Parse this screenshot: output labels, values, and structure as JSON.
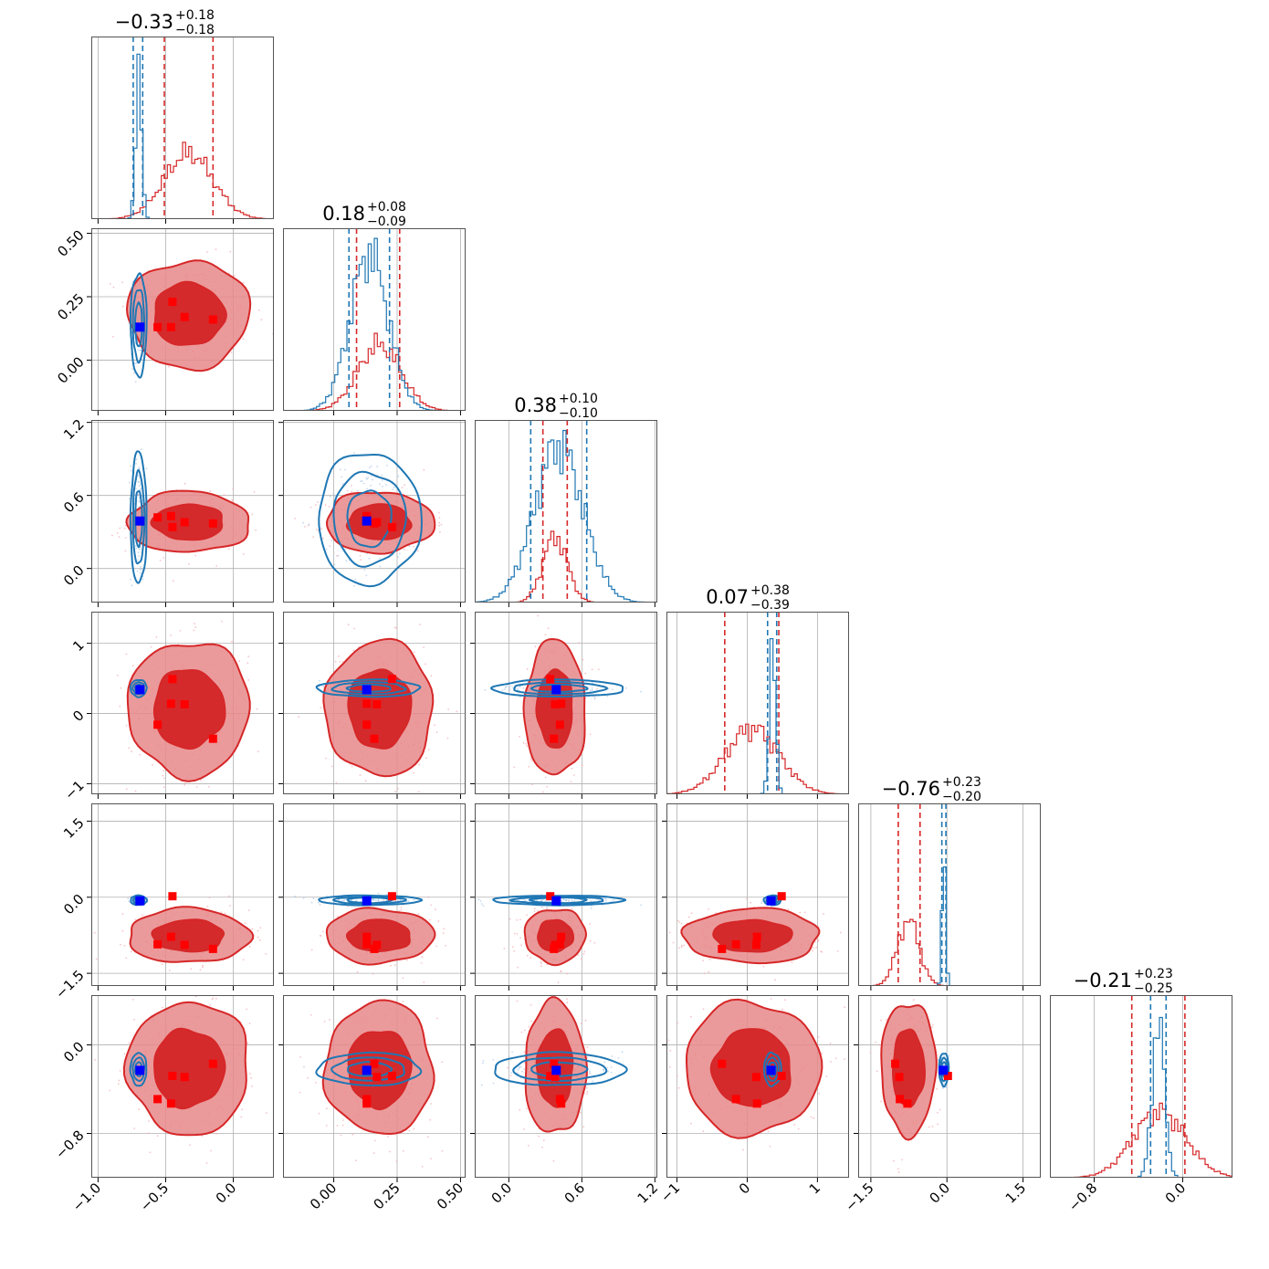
{
  "chart_data": {
    "type": "corner",
    "parameters": 6,
    "grid": true,
    "colors": {
      "red": "#d62728",
      "red_fill": "#e8888a",
      "red_dark": "#d42a2c",
      "blue": "#1f77b4",
      "blue_marker": "#0000ff",
      "red_marker": "#ff0000"
    },
    "titles": [
      {
        "median": "−0.33",
        "plus": "+0.18",
        "minus": "−0.18"
      },
      {
        "median": "0.18",
        "plus": "+0.08",
        "minus": "−0.09"
      },
      {
        "median": "0.38",
        "plus": "+0.10",
        "minus": "−0.10"
      },
      {
        "median": "0.07",
        "plus": "+0.38",
        "minus": "−0.39"
      },
      {
        "median": "−0.76",
        "plus": "+0.23",
        "minus": "−0.20"
      },
      {
        "median": "−0.21",
        "plus": "+0.23",
        "minus": "−0.25"
      }
    ],
    "axes": [
      {
        "range": [
          -1.05,
          0.3
        ],
        "ticks": [
          -1.0,
          -0.5,
          0.0
        ],
        "tick_labels": [
          "−1.0",
          "−0.5",
          "0.0"
        ]
      },
      {
        "range": [
          -0.2,
          0.52
        ],
        "ticks": [
          0.0,
          0.25,
          0.5
        ],
        "tick_labels": [
          "0.00",
          "0.25",
          "0.50"
        ]
      },
      {
        "range": [
          -0.28,
          1.22
        ],
        "ticks": [
          0.0,
          0.6,
          1.2
        ],
        "tick_labels": [
          "0.0",
          "0.6",
          "1.2"
        ]
      },
      {
        "range": [
          -1.15,
          1.45
        ],
        "ticks": [
          -1,
          0,
          1
        ],
        "tick_labels": [
          "−1",
          "0",
          "1"
        ]
      },
      {
        "range": [
          -1.75,
          1.85
        ],
        "ticks": [
          -1.5,
          0.0,
          1.5
        ],
        "tick_labels": [
          "−1.5",
          "0.0",
          "1.5"
        ]
      },
      {
        "range": [
          -1.2,
          0.45
        ],
        "ticks": [
          -0.8,
          0.0
        ],
        "tick_labels": [
          "−0.8",
          "0.0"
        ]
      }
    ],
    "red_posterior": {
      "mean": [
        -0.33,
        0.18,
        0.38,
        0.07,
        -0.76,
        -0.21
      ],
      "sd": [
        0.18,
        0.085,
        0.1,
        0.385,
        0.215,
        0.24
      ],
      "quantile_lines": [
        [
          -0.51,
          -0.15
        ],
        [
          0.09,
          0.26
        ],
        [
          0.28,
          0.48
        ],
        [
          -0.32,
          0.45
        ],
        [
          -0.96,
          -0.53
        ],
        [
          -0.46,
          0.02
        ]
      ],
      "markers": [
        [
          -0.45,
          0.23,
          0.34,
          0.49,
          0.02,
          -0.28
        ],
        [
          -0.56,
          0.13,
          0.42,
          -0.16,
          -0.93,
          -0.49
        ],
        [
          -0.36,
          0.17,
          0.38,
          0.13,
          -0.94,
          -0.29
        ],
        [
          -0.15,
          0.16,
          0.37,
          -0.36,
          -1.02,
          -0.17
        ],
        [
          -0.46,
          0.13,
          0.43,
          0.14,
          -0.78,
          -0.53
        ]
      ]
    },
    "blue_posterior": {
      "mean": [
        -0.7,
        0.14,
        0.41,
        0.36,
        -0.06,
        -0.22
      ],
      "sd": [
        0.022,
        0.075,
        0.2,
        0.045,
        0.035,
        0.055
      ],
      "quantile_lines": [
        [
          -0.74,
          -0.67
        ],
        [
          0.06,
          0.22
        ],
        [
          0.18,
          0.64
        ],
        [
          0.29,
          0.42
        ],
        [
          -0.1,
          -0.02
        ],
        [
          -0.29,
          -0.15
        ]
      ],
      "truth": [
        -0.69,
        0.13,
        0.39,
        0.34,
        -0.07,
        -0.23
      ]
    }
  }
}
